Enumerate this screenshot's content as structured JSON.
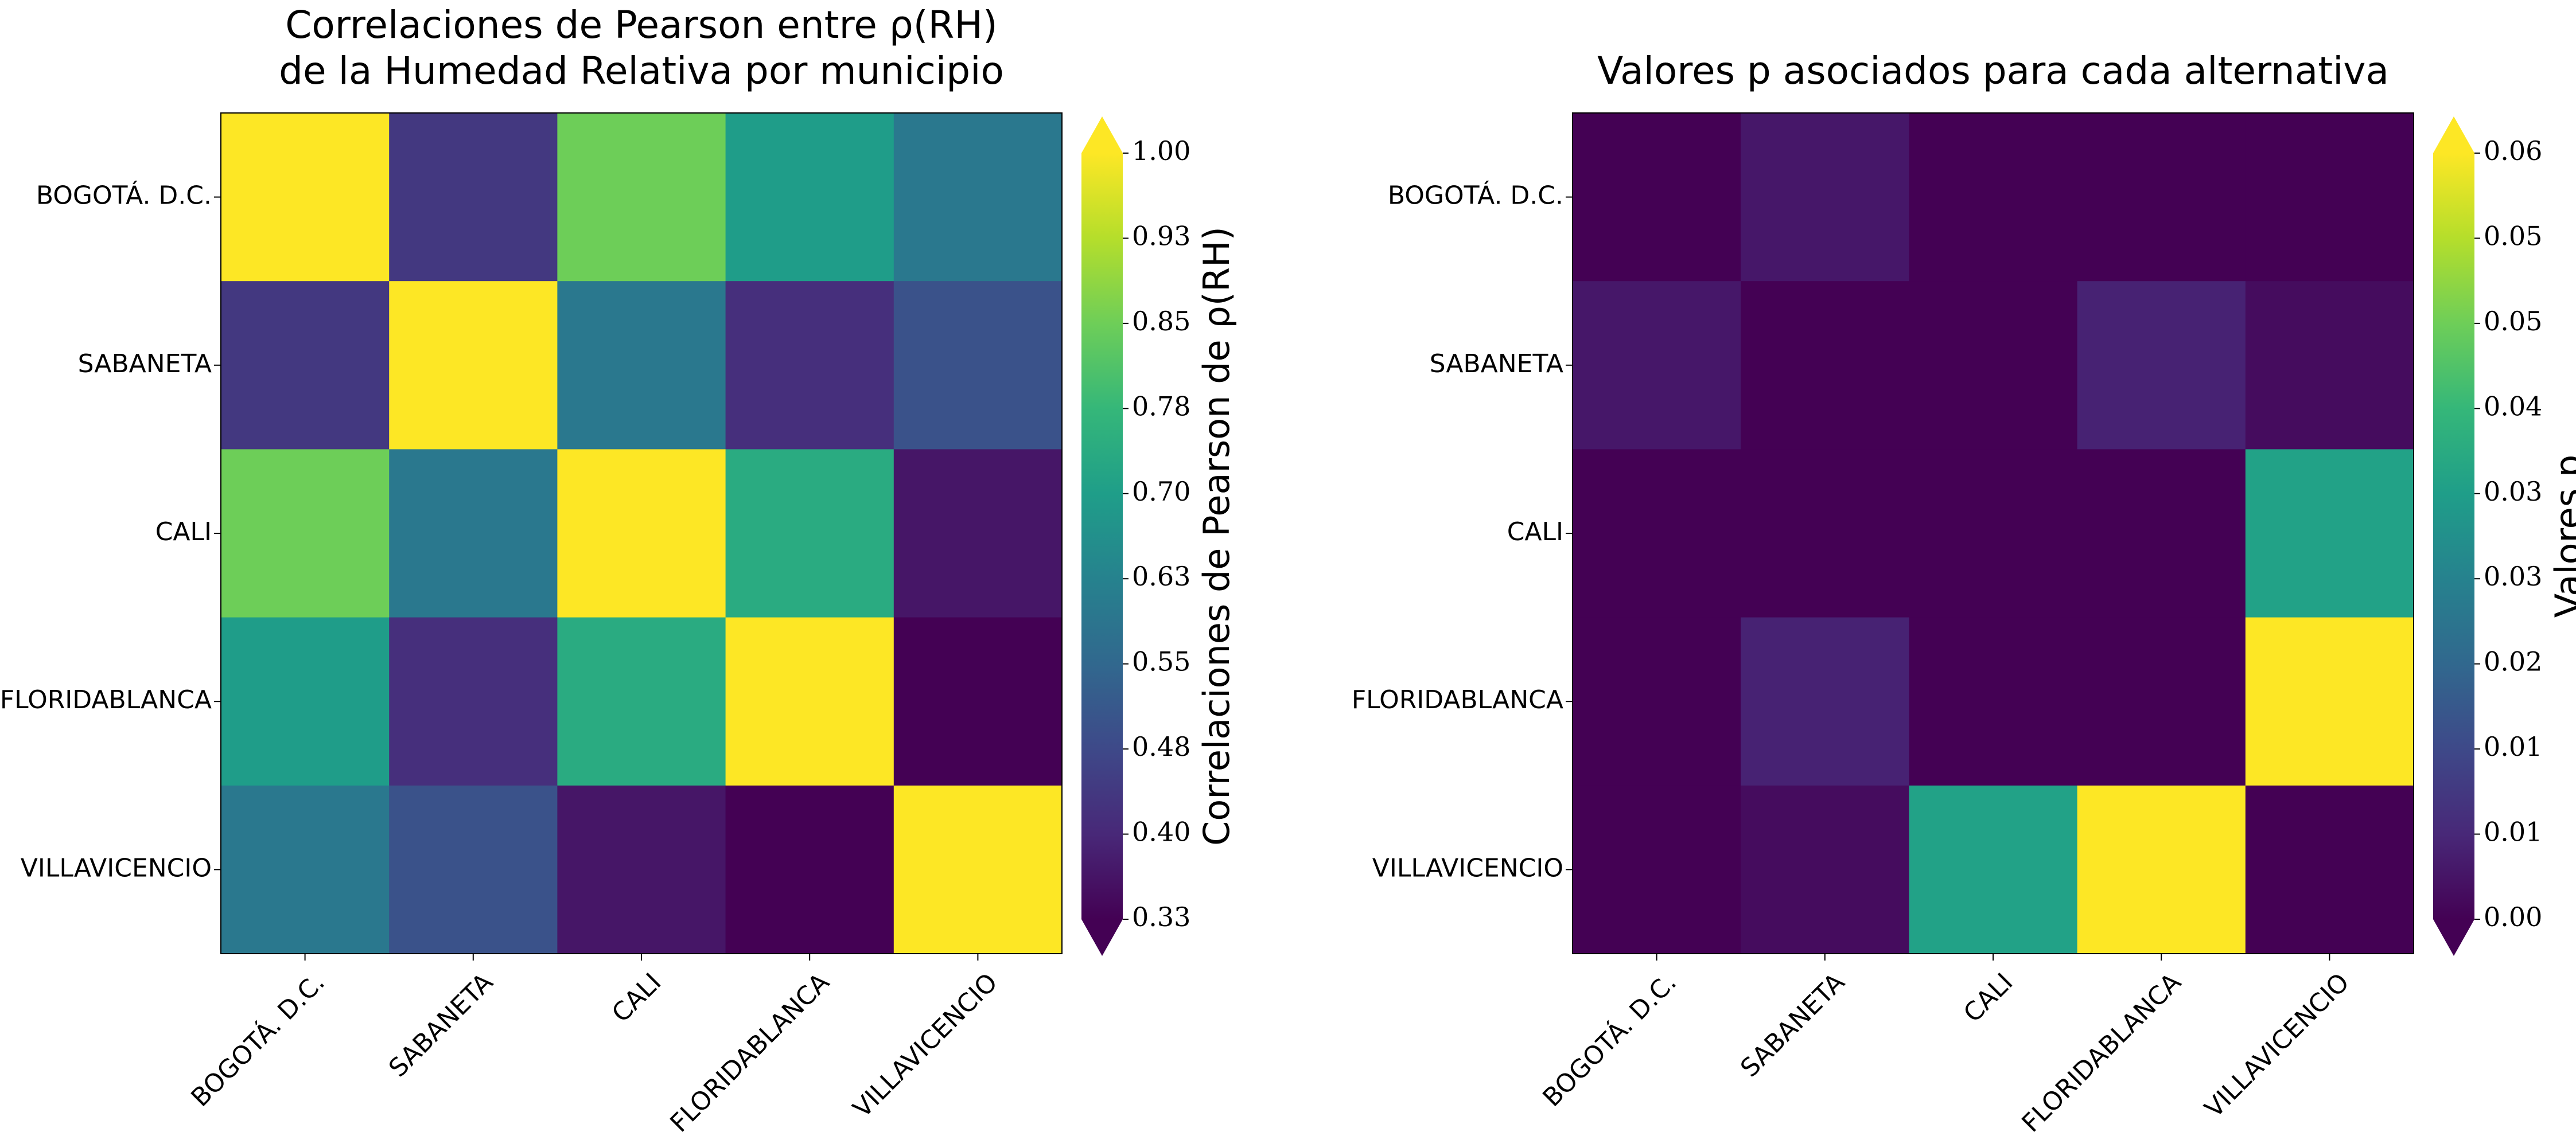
{
  "chart_data": [
    {
      "type": "heatmap",
      "title": "Correlaciones de Pearson entre ρ(RH)",
      "title_line1": "Correlaciones de Pearson entre ρ(RH)",
      "title_line2": "de la Humedad Relativa por municipio",
      "categories": [
        "BOGOTÁ. D.C.",
        "SABANETA",
        "CALI",
        "FLORIDABLANCA",
        "VILLAVICENCIO"
      ],
      "values": [
        [
          1.0,
          0.44,
          0.85,
          0.7,
          0.6
        ],
        [
          0.44,
          1.0,
          0.6,
          0.42,
          0.5
        ],
        [
          0.85,
          0.6,
          1.0,
          0.74,
          0.37
        ],
        [
          0.7,
          0.42,
          0.74,
          1.0,
          0.33
        ],
        [
          0.6,
          0.5,
          0.37,
          0.33,
          1.0
        ]
      ],
      "colorbar_label": "Correlaciones de Pearson de ρ(RH)",
      "vmin": 0.33,
      "vmax": 1.0,
      "colorbar_ticks": [
        "0.33",
        "0.40",
        "0.48",
        "0.55",
        "0.63",
        "0.70",
        "0.78",
        "0.85",
        "0.93",
        "1.00"
      ],
      "colormap": "viridis",
      "grid": false
    },
    {
      "type": "heatmap",
      "title": "Valores p asociados para cada alternativa",
      "categories": [
        "BOGOTÁ. D.C.",
        "SABANETA",
        "CALI",
        "FLORIDABLANCA",
        "VILLAVICENCIO"
      ],
      "values": [
        [
          0.0,
          0.004,
          0.0,
          0.0,
          0.0
        ],
        [
          0.004,
          0.0,
          0.0,
          0.006,
          0.002
        ],
        [
          0.0,
          0.0,
          0.0,
          0.0,
          0.036
        ],
        [
          0.0,
          0.006,
          0.0,
          0.0,
          0.063
        ],
        [
          0.0,
          0.002,
          0.036,
          0.063,
          0.0
        ]
      ],
      "colorbar_label": "Valores p",
      "vmin": 0.0,
      "vmax": 0.063,
      "colorbar_ticks": [
        "0.00",
        "0.01",
        "0.01",
        "0.02",
        "0.03",
        "0.03",
        "0.04",
        "0.05",
        "0.05",
        "0.06"
      ],
      "colormap": "viridis",
      "grid": false
    }
  ]
}
